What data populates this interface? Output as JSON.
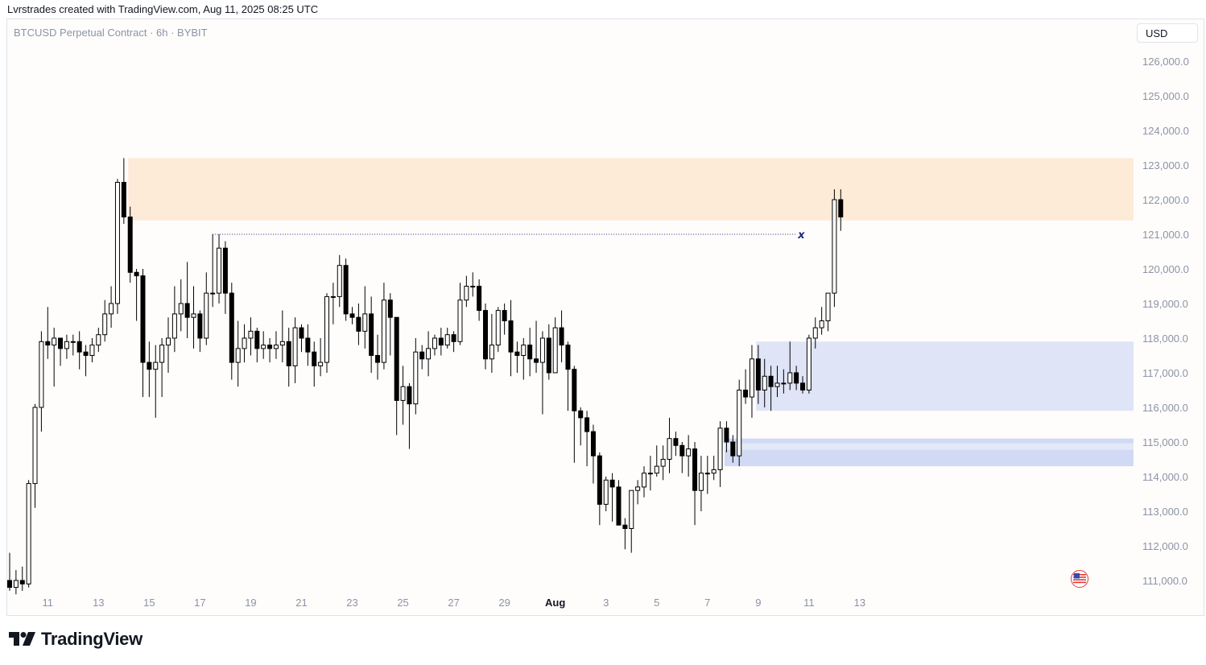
{
  "header": {
    "attribution": "Lvrstrades created with TradingView.com, Aug 11, 2025 08:25 UTC"
  },
  "symbol_label": "BTCUSD Perpetual Contract · 6h · BYBIT",
  "currency_label": "USD",
  "brand": {
    "name": "TradingView"
  },
  "colors": {
    "bull_body": "#ffffff",
    "bear_body": "#000000",
    "wick": "#000000",
    "supply_zone": "#fdebd8",
    "demand_zone": "#dfe4f6",
    "fvg_zone": "#c9d3f2",
    "level_line": "#1e2a78",
    "axis_text": "#8a93a6"
  },
  "chart_data": {
    "type": "candlestick",
    "ylim": [
      110700,
      127000
    ],
    "ytick_labels": [
      "126,000.0",
      "125,000.0",
      "124,000.0",
      "123,000.0",
      "122,000.0",
      "121,000.0",
      "120,000.0",
      "119,000.0",
      "118,000.0",
      "117,000.0",
      "116,000.0",
      "115,000.0",
      "114,000.0",
      "113,000.0",
      "112,000.0",
      "111,000.0"
    ],
    "yticks": [
      126000,
      125000,
      124000,
      123000,
      122000,
      121000,
      120000,
      119000,
      118000,
      117000,
      116000,
      115000,
      114000,
      113000,
      112000,
      111000
    ],
    "xtick_labels": [
      "11",
      "13",
      "15",
      "17",
      "19",
      "21",
      "23",
      "25",
      "27",
      "29",
      "Aug",
      "3",
      "5",
      "7",
      "9",
      "11",
      "13"
    ],
    "xtick_bars": [
      6,
      14,
      22,
      30,
      38,
      46,
      54,
      62,
      70,
      78,
      86,
      94,
      102,
      110,
      118,
      126,
      134
    ],
    "bar_interval": "6h",
    "candles": [
      [
        111000,
        110800,
        111800,
        110700
      ],
      [
        110800,
        111000,
        111300,
        110600
      ],
      [
        111000,
        110900,
        111400,
        110700
      ],
      [
        110900,
        113800,
        113900,
        110800
      ],
      [
        113800,
        116000,
        116100,
        113100
      ],
      [
        116000,
        117900,
        118200,
        115300
      ],
      [
        117900,
        117800,
        118900,
        117400
      ],
      [
        117800,
        118000,
        118300,
        116600
      ],
      [
        118000,
        117700,
        118000,
        117200
      ],
      [
        117700,
        117900,
        118100,
        117400
      ],
      [
        117900,
        117900,
        118100,
        117500
      ],
      [
        117900,
        117600,
        118200,
        117100
      ],
      [
        117600,
        117500,
        117800,
        116900
      ],
      [
        117500,
        117800,
        118000,
        117300
      ],
      [
        117800,
        118100,
        118300,
        117600
      ],
      [
        118100,
        118700,
        119100,
        117900
      ],
      [
        118700,
        119000,
        119500,
        118300
      ],
      [
        119000,
        122500,
        122600,
        118700
      ],
      [
        122500,
        121500,
        123200,
        121300
      ],
      [
        121500,
        119900,
        121800,
        119600
      ],
      [
        119900,
        119800,
        120000,
        118500
      ],
      [
        119800,
        117300,
        120000,
        116300
      ],
      [
        117300,
        117100,
        117900,
        116300
      ],
      [
        117100,
        117300,
        117800,
        115700
      ],
      [
        117300,
        117800,
        118000,
        116300
      ],
      [
        117800,
        118000,
        118600,
        117000
      ],
      [
        118000,
        118700,
        119500,
        117600
      ],
      [
        118700,
        119000,
        119700,
        118200
      ],
      [
        119000,
        118600,
        120200,
        118000
      ],
      [
        118600,
        118700,
        119500,
        117700
      ],
      [
        118700,
        118000,
        118800,
        117600
      ],
      [
        118000,
        119300,
        119900,
        117800
      ],
      [
        119300,
        119300,
        121000,
        118900
      ],
      [
        119300,
        120600,
        121000,
        119000
      ],
      [
        120600,
        119300,
        120800,
        118700
      ],
      [
        119300,
        117300,
        119600,
        116800
      ],
      [
        117300,
        117700,
        118500,
        116600
      ],
      [
        117700,
        118000,
        118400,
        117300
      ],
      [
        118000,
        118200,
        118600,
        117500
      ],
      [
        118200,
        117700,
        118300,
        117300
      ],
      [
        117700,
        117800,
        118200,
        117400
      ],
      [
        117800,
        117700,
        118000,
        117300
      ],
      [
        117700,
        117800,
        118200,
        117400
      ],
      [
        117800,
        117900,
        118800,
        117300
      ],
      [
        117900,
        117200,
        118300,
        116600
      ],
      [
        117200,
        118300,
        118600,
        116700
      ],
      [
        118300,
        118000,
        118400,
        117600
      ],
      [
        118000,
        117600,
        118400,
        117200
      ],
      [
        117600,
        117200,
        117900,
        116600
      ],
      [
        117200,
        117300,
        118000,
        116900
      ],
      [
        117300,
        119200,
        119300,
        117000
      ],
      [
        119200,
        119200,
        119600,
        118400
      ],
      [
        119200,
        120100,
        120400,
        118900
      ],
      [
        120100,
        118700,
        120300,
        118500
      ],
      [
        118700,
        118600,
        118900,
        118400
      ],
      [
        118600,
        118200,
        119000,
        117800
      ],
      [
        118200,
        118700,
        119500,
        117700
      ],
      [
        118700,
        117500,
        119200,
        117000
      ],
      [
        117500,
        117300,
        118100,
        116800
      ],
      [
        117300,
        119100,
        119600,
        117100
      ],
      [
        119100,
        118600,
        119300,
        117500
      ],
      [
        118600,
        116200,
        118600,
        115200
      ],
      [
        116200,
        116600,
        117200,
        115500
      ],
      [
        116600,
        116100,
        116700,
        114800
      ],
      [
        116100,
        117600,
        118000,
        115800
      ],
      [
        117600,
        117400,
        117800,
        117100
      ],
      [
        117400,
        117700,
        118200,
        116900
      ],
      [
        117700,
        118000,
        118100,
        117500
      ],
      [
        118000,
        117800,
        118300,
        117500
      ],
      [
        117800,
        118100,
        118300,
        117700
      ],
      [
        118100,
        117900,
        118200,
        117600
      ],
      [
        117900,
        119100,
        119600,
        117800
      ],
      [
        119100,
        119500,
        119800,
        118900
      ],
      [
        119500,
        119500,
        119900,
        119200
      ],
      [
        119500,
        118800,
        119700,
        118500
      ],
      [
        118800,
        117400,
        119000,
        117100
      ],
      [
        117400,
        117800,
        118700,
        117000
      ],
      [
        117800,
        118800,
        118900,
        117600
      ],
      [
        118800,
        118500,
        119000,
        118100
      ],
      [
        118500,
        117600,
        119100,
        116900
      ],
      [
        117600,
        117500,
        117900,
        117000
      ],
      [
        117500,
        117800,
        118000,
        116800
      ],
      [
        117800,
        117400,
        118300,
        116900
      ],
      [
        117400,
        117300,
        118500,
        117000
      ],
      [
        117300,
        118000,
        118200,
        115800
      ],
      [
        118000,
        117000,
        118400,
        116800
      ],
      [
        117000,
        118300,
        118600,
        117700
      ],
      [
        118300,
        117800,
        118800,
        117300
      ],
      [
        117800,
        117100,
        117900,
        115900
      ],
      [
        117100,
        115900,
        117200,
        114400
      ],
      [
        115900,
        115700,
        116000,
        114900
      ],
      [
        115700,
        115300,
        115900,
        114300
      ],
      [
        115300,
        114600,
        115500,
        113800
      ],
      [
        114600,
        113200,
        114700,
        112600
      ],
      [
        113200,
        113900,
        114000,
        113000
      ],
      [
        113900,
        113700,
        114100,
        112700
      ],
      [
        113700,
        112600,
        113900,
        112600
      ],
      [
        112600,
        112500,
        112800,
        111900
      ],
      [
        112500,
        113600,
        113600,
        111800
      ],
      [
        113600,
        113700,
        113900,
        113200
      ],
      [
        113700,
        114100,
        114300,
        113400
      ],
      [
        114100,
        114100,
        114600,
        113600
      ],
      [
        114100,
        114300,
        114900,
        114000
      ],
      [
        114300,
        114500,
        114900,
        113900
      ],
      [
        114500,
        115100,
        115700,
        114100
      ],
      [
        115100,
        114900,
        115300,
        114600
      ],
      [
        114900,
        114600,
        115000,
        114100
      ],
      [
        114600,
        114800,
        115200,
        114000
      ],
      [
        114800,
        113600,
        115000,
        112600
      ],
      [
        113600,
        114100,
        114600,
        113000
      ],
      [
        114100,
        114100,
        114600,
        113500
      ],
      [
        114100,
        114200,
        114600,
        113900
      ],
      [
        114200,
        115400,
        115600,
        113700
      ],
      [
        115400,
        115000,
        115600,
        114700
      ],
      [
        115000,
        114600,
        115200,
        114400
      ],
      [
        114600,
        116500,
        116800,
        114300
      ],
      [
        116500,
        116300,
        117100,
        116100
      ],
      [
        116300,
        117400,
        117800,
        115700
      ],
      [
        117400,
        116500,
        117800,
        116100
      ],
      [
        116500,
        116900,
        117400,
        116000
      ],
      [
        116900,
        116600,
        117200,
        115900
      ],
      [
        116600,
        116700,
        117200,
        116300
      ],
      [
        116700,
        116700,
        117100,
        116400
      ],
      [
        116700,
        117000,
        117900,
        116500
      ],
      [
        117000,
        116700,
        117200,
        116500
      ],
      [
        116700,
        116500,
        116900,
        116400
      ],
      [
        116500,
        118000,
        118100,
        116400
      ],
      [
        118000,
        118300,
        118600,
        117700
      ],
      [
        118300,
        118500,
        118900,
        118100
      ],
      [
        118500,
        119300,
        119300,
        118200
      ],
      [
        119300,
        122000,
        122300,
        118900
      ],
      [
        122000,
        121500,
        122300,
        121100
      ]
    ],
    "zones": [
      {
        "name": "supply",
        "top": 123200,
        "bottom": 121400,
        "from_bar": 19,
        "to": "end"
      },
      {
        "name": "demand",
        "top": 117900,
        "bottom": 115900,
        "from_bar": 118,
        "to": "end"
      },
      {
        "name": "fvg",
        "top": 115100,
        "bottom": 114300,
        "from_bar": 113,
        "to": "end"
      }
    ],
    "level_line": {
      "price": 121000,
      "from_bar": 32,
      "to_bar": 124,
      "marker": "x"
    }
  }
}
